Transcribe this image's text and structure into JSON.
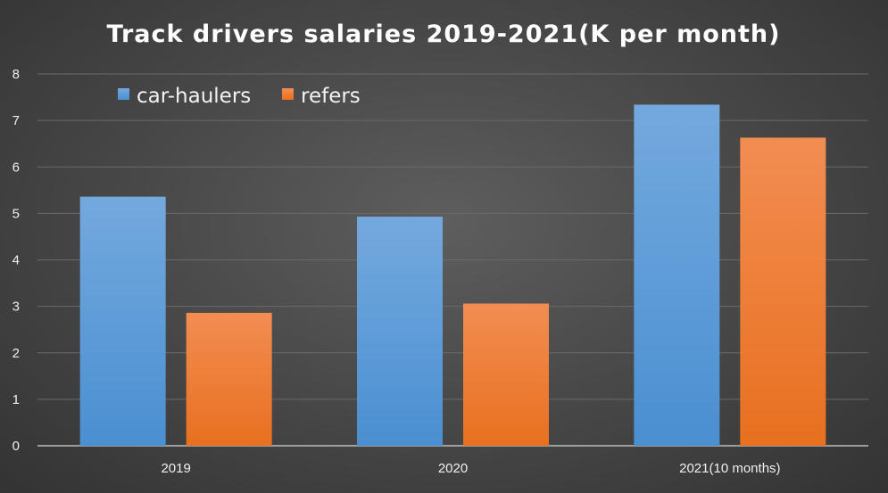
{
  "chart_data": {
    "type": "bar",
    "title": "Track drivers salaries 2019-2021(K per month)",
    "categories": [
      "2019",
      "2020",
      "2021(10 months)"
    ],
    "series": [
      {
        "name": "car-haulers",
        "values": [
          5.36,
          4.93,
          7.34
        ]
      },
      {
        "name": "refers",
        "values": [
          2.86,
          3.06,
          6.63
        ]
      }
    ],
    "y_ticks": [
      "0",
      "1",
      "2",
      "3",
      "4",
      "5",
      "6",
      "7",
      "8"
    ],
    "ylim": [
      0,
      8
    ],
    "xlabel": "",
    "ylabel": "",
    "grid": true,
    "legend_position": "top-left",
    "colors": {
      "car-haulers_top": "#74a9de",
      "car-haulers_bottom": "#4a8fd1",
      "refers_top": "#f28d52",
      "refers_bottom": "#e8701f"
    }
  }
}
